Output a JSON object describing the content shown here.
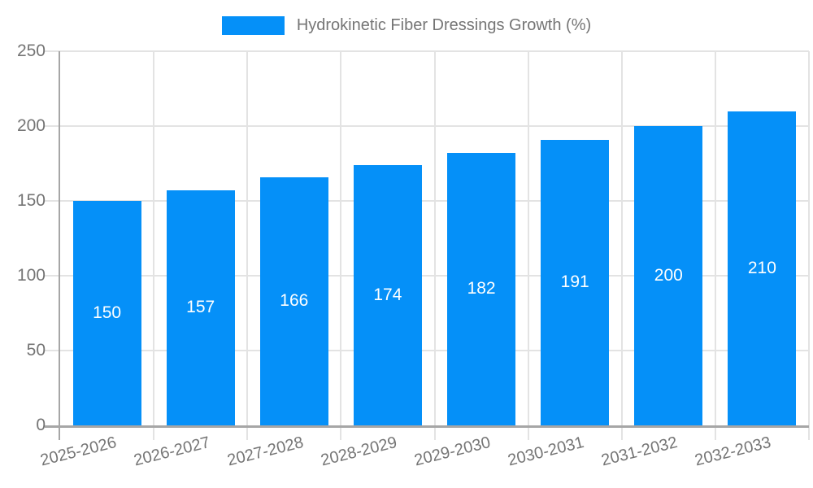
{
  "legend": {
    "label": "Hydrokinetic Fiber Dressings Growth (%)"
  },
  "chart_data": {
    "type": "bar",
    "title": "",
    "series_name": "Hydrokinetic Fiber Dressings Growth (%)",
    "categories": [
      "2025-2026",
      "2026-2027",
      "2027-2028",
      "2028-2029",
      "2029-2030",
      "2030-2031",
      "2031-2032",
      "2032-2033"
    ],
    "values": [
      150,
      157,
      166,
      174,
      182,
      191,
      200,
      210
    ],
    "bar_labels_visible": true,
    "xlabel": "",
    "ylabel": "",
    "ylim": [
      0,
      250
    ],
    "yticks": [
      0,
      50,
      100,
      150,
      200,
      250
    ],
    "grid": true,
    "legend_position": "top"
  },
  "colors": {
    "bar": "#0590f8",
    "text": "#757575",
    "grid": "#e3e3e3",
    "axis": "#a6a6a6",
    "bar_label": "#ffffff",
    "background": "#ffffff"
  }
}
